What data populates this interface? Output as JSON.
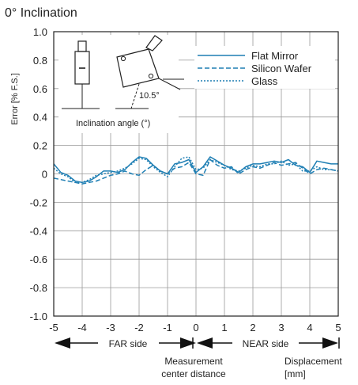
{
  "chart_data": {
    "type": "line",
    "title": "0° Inclination",
    "ylabel": "Error [% F.S.]",
    "xlabel": "Displacement [mm]",
    "xlabel_lines": [
      "Displacement",
      "[mm]"
    ],
    "xlim": [
      -5,
      5
    ],
    "ylim": [
      -1.0,
      1.0
    ],
    "grid": true,
    "legend_position": "top-right",
    "x_ticks": [
      -5,
      -4,
      -3,
      -2,
      -1,
      0,
      1,
      2,
      3,
      4,
      5
    ],
    "x_tick_labels": [
      "-5",
      "-4",
      "-3",
      "-2",
      "-1",
      "0",
      "1",
      "2",
      "3",
      "4",
      "5"
    ],
    "y_ticks": [
      1.0,
      0.8,
      0.6,
      0.4,
      0.2,
      0,
      -0.2,
      -0.4,
      -0.6,
      -0.8,
      -1.0
    ],
    "y_tick_labels": [
      "1.0",
      "0.8",
      "0.6",
      "0.4",
      "0.2",
      "0",
      "-0.2",
      "-0.4",
      "-0.6",
      "-0.8",
      "-1.0"
    ],
    "side_labels": {
      "far": "FAR side",
      "near": "NEAR side"
    },
    "center_label_lines": [
      "Measurement",
      "center distance"
    ],
    "inset": {
      "angle_label": "10.5°",
      "caption": "Inclination angle (°)"
    },
    "x": [
      -5,
      -4.75,
      -4.5,
      -4.25,
      -4,
      -3.75,
      -3.5,
      -3.25,
      -3,
      -2.75,
      -2.5,
      -2.25,
      -2,
      -1.75,
      -1.5,
      -1.25,
      -1,
      -0.75,
      -0.5,
      -0.25,
      0,
      0.25,
      0.5,
      0.75,
      1,
      1.25,
      1.5,
      1.75,
      2,
      2.25,
      2.5,
      2.75,
      3,
      3.25,
      3.5,
      3.75,
      4,
      4.25,
      4.5,
      4.75,
      5
    ],
    "series": [
      {
        "name": "Flat Mirror",
        "style": "solid",
        "color": "#1f7fb4",
        "values": [
          0.07,
          0.01,
          -0.01,
          -0.05,
          -0.06,
          -0.05,
          -0.02,
          0.02,
          0.02,
          0.01,
          0.03,
          0.08,
          0.12,
          0.11,
          0.06,
          0.02,
          0.0,
          0.07,
          0.08,
          0.1,
          0.01,
          0.05,
          0.12,
          0.09,
          0.06,
          0.04,
          0.01,
          0.05,
          0.07,
          0.07,
          0.08,
          0.09,
          0.08,
          0.1,
          0.06,
          0.05,
          0.01,
          0.09,
          0.08,
          0.07,
          0.07
        ]
      },
      {
        "name": "Silicon Wafer",
        "style": "dashed",
        "color": "#1f7fb4",
        "values": [
          -0.03,
          -0.04,
          -0.05,
          -0.06,
          -0.07,
          -0.06,
          -0.05,
          -0.03,
          -0.01,
          0.0,
          0.02,
          0.0,
          -0.01,
          0.03,
          0.06,
          0.02,
          0.0,
          0.04,
          0.05,
          0.08,
          0.0,
          -0.01,
          0.1,
          0.06,
          0.04,
          0.05,
          0.0,
          0.03,
          0.05,
          0.04,
          0.06,
          0.08,
          0.06,
          0.07,
          0.08,
          0.04,
          0.0,
          0.03,
          0.04,
          0.03,
          0.02
        ]
      },
      {
        "name": "Glass",
        "style": "dotted",
        "color": "#1f7fb4",
        "values": [
          0.04,
          0.0,
          -0.02,
          -0.06,
          -0.06,
          -0.04,
          -0.01,
          0.0,
          0.01,
          0.02,
          0.04,
          0.07,
          0.11,
          0.1,
          0.05,
          0.01,
          -0.02,
          0.05,
          0.11,
          0.12,
          0.03,
          0.04,
          0.1,
          0.08,
          0.06,
          0.03,
          0.02,
          0.04,
          0.06,
          0.05,
          0.07,
          0.07,
          0.09,
          0.06,
          0.07,
          0.02,
          0.02,
          0.05,
          0.03,
          0.03,
          0.02
        ]
      }
    ]
  }
}
